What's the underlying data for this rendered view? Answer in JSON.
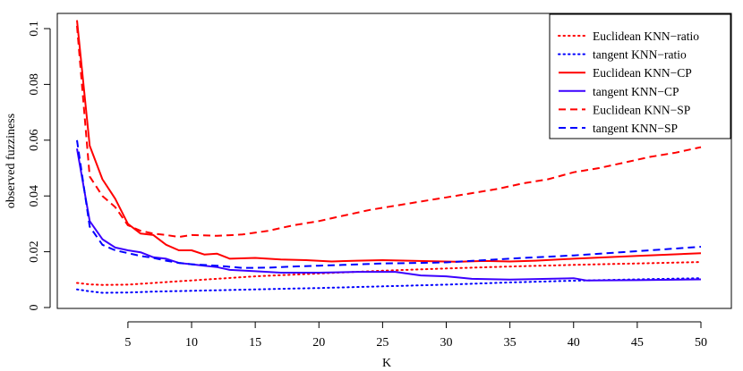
{
  "chart_data": {
    "type": "line",
    "xlabel": "K",
    "ylabel": "observed fuzziness",
    "xlim": [
      1,
      50
    ],
    "ylim": [
      0,
      0.1
    ],
    "x_ticks": [
      {
        "value": 5,
        "label": "5"
      },
      {
        "value": 10,
        "label": "10"
      },
      {
        "value": 15,
        "label": "15"
      },
      {
        "value": 20,
        "label": "20"
      },
      {
        "value": 25,
        "label": "25"
      },
      {
        "value": 30,
        "label": "30"
      },
      {
        "value": 35,
        "label": "35"
      },
      {
        "value": 40,
        "label": "40"
      },
      {
        "value": 45,
        "label": "45"
      },
      {
        "value": 50,
        "label": "50"
      }
    ],
    "y_ticks": [
      {
        "value": 0,
        "label": "0"
      },
      {
        "value": 0.02,
        "label": "0.02"
      },
      {
        "value": 0.04,
        "label": "0.04"
      },
      {
        "value": 0.06,
        "label": "0.06"
      },
      {
        "value": 0.08,
        "label": "0.08"
      },
      {
        "value": 0.1,
        "label": "0.1"
      }
    ],
    "legend_position": "top-right",
    "series": [
      {
        "name": "Euclidean KNN−ratio",
        "color": "#ff0000",
        "linestyle": "dotted",
        "points": [
          [
            1,
            0.0088
          ],
          [
            2,
            0.0083
          ],
          [
            3,
            0.0081
          ],
          [
            5,
            0.0082
          ],
          [
            7,
            0.0088
          ],
          [
            10,
            0.0097
          ],
          [
            15,
            0.0112
          ],
          [
            20,
            0.0122
          ],
          [
            25,
            0.0132
          ],
          [
            30,
            0.014
          ],
          [
            35,
            0.0147
          ],
          [
            40,
            0.0153
          ],
          [
            45,
            0.0158
          ],
          [
            50,
            0.0163
          ]
        ]
      },
      {
        "name": "tangent KNN−ratio",
        "color": "#0000ff",
        "linestyle": "dotted",
        "points": [
          [
            1,
            0.0065
          ],
          [
            2,
            0.0058
          ],
          [
            3,
            0.0053
          ],
          [
            5,
            0.0054
          ],
          [
            7,
            0.0057
          ],
          [
            10,
            0.006
          ],
          [
            15,
            0.0065
          ],
          [
            20,
            0.007
          ],
          [
            25,
            0.0076
          ],
          [
            30,
            0.0082
          ],
          [
            35,
            0.009
          ],
          [
            40,
            0.0096
          ],
          [
            45,
            0.0101
          ],
          [
            50,
            0.0105
          ]
        ]
      },
      {
        "name": "Euclidean KNN−CP",
        "color": "#ff0000",
        "linestyle": "solid",
        "points": [
          [
            1,
            0.103
          ],
          [
            2,
            0.058
          ],
          [
            3,
            0.046
          ],
          [
            4,
            0.039
          ],
          [
            5,
            0.03
          ],
          [
            6,
            0.0265
          ],
          [
            7,
            0.026
          ],
          [
            8,
            0.0225
          ],
          [
            9,
            0.0205
          ],
          [
            10,
            0.0205
          ],
          [
            11,
            0.019
          ],
          [
            12,
            0.0193
          ],
          [
            13,
            0.0175
          ],
          [
            15,
            0.0178
          ],
          [
            17,
            0.0172
          ],
          [
            19,
            0.017
          ],
          [
            21,
            0.0165
          ],
          [
            23,
            0.0168
          ],
          [
            25,
            0.017
          ],
          [
            27,
            0.0168
          ],
          [
            29,
            0.0166
          ],
          [
            31,
            0.0164
          ],
          [
            33,
            0.0167
          ],
          [
            35,
            0.0165
          ],
          [
            37,
            0.0168
          ],
          [
            40,
            0.0175
          ],
          [
            45,
            0.0185
          ],
          [
            50,
            0.0195
          ]
        ]
      },
      {
        "name": "tangent KNN−CP",
        "color": "#3b00ff",
        "linestyle": "solid",
        "points": [
          [
            1,
            0.057
          ],
          [
            2,
            0.031
          ],
          [
            3,
            0.0245
          ],
          [
            4,
            0.0215
          ],
          [
            5,
            0.0205
          ],
          [
            6,
            0.0198
          ],
          [
            7,
            0.018
          ],
          [
            8,
            0.0175
          ],
          [
            9,
            0.016
          ],
          [
            10,
            0.0155
          ],
          [
            11,
            0.015
          ],
          [
            12,
            0.0145
          ],
          [
            13,
            0.0135
          ],
          [
            15,
            0.013
          ],
          [
            17,
            0.0125
          ],
          [
            20,
            0.0125
          ],
          [
            23,
            0.0128
          ],
          [
            26,
            0.0128
          ],
          [
            28,
            0.0115
          ],
          [
            30,
            0.0112
          ],
          [
            32,
            0.0103
          ],
          [
            35,
            0.01
          ],
          [
            38,
            0.0103
          ],
          [
            40,
            0.0105
          ],
          [
            41,
            0.0097
          ],
          [
            45,
            0.0098
          ],
          [
            50,
            0.0101
          ]
        ]
      },
      {
        "name": "Euclidean KNN−SP",
        "color": "#ff0000",
        "linestyle": "dashed",
        "points": [
          [
            1,
            0.101
          ],
          [
            2,
            0.047
          ],
          [
            3,
            0.04
          ],
          [
            4,
            0.036
          ],
          [
            5,
            0.0295
          ],
          [
            6,
            0.0275
          ],
          [
            7,
            0.0265
          ],
          [
            8,
            0.026
          ],
          [
            9,
            0.0253
          ],
          [
            10,
            0.026
          ],
          [
            12,
            0.0257
          ],
          [
            14,
            0.0262
          ],
          [
            16,
            0.0275
          ],
          [
            18,
            0.0295
          ],
          [
            20,
            0.031
          ],
          [
            22,
            0.033
          ],
          [
            24,
            0.035
          ],
          [
            26,
            0.0365
          ],
          [
            28,
            0.038
          ],
          [
            30,
            0.0395
          ],
          [
            32,
            0.041
          ],
          [
            34,
            0.0425
          ],
          [
            36,
            0.0445
          ],
          [
            38,
            0.046
          ],
          [
            40,
            0.0485
          ],
          [
            42,
            0.05
          ],
          [
            44,
            0.052
          ],
          [
            46,
            0.054
          ],
          [
            48,
            0.0555
          ],
          [
            50,
            0.0575
          ]
        ]
      },
      {
        "name": "tangent KNN−SP",
        "color": "#0000ff",
        "linestyle": "dashed",
        "points": [
          [
            1,
            0.06
          ],
          [
            2,
            0.029
          ],
          [
            3,
            0.0225
          ],
          [
            4,
            0.0205
          ],
          [
            5,
            0.0195
          ],
          [
            6,
            0.0185
          ],
          [
            7,
            0.0178
          ],
          [
            8,
            0.0168
          ],
          [
            9,
            0.016
          ],
          [
            10,
            0.0155
          ],
          [
            12,
            0.015
          ],
          [
            14,
            0.0142
          ],
          [
            16,
            0.0143
          ],
          [
            18,
            0.0147
          ],
          [
            20,
            0.015
          ],
          [
            22,
            0.0153
          ],
          [
            25,
            0.0158
          ],
          [
            28,
            0.016
          ],
          [
            30,
            0.0162
          ],
          [
            33,
            0.017
          ],
          [
            36,
            0.0178
          ],
          [
            40,
            0.0187
          ],
          [
            45,
            0.0202
          ],
          [
            50,
            0.0218
          ]
        ]
      }
    ]
  }
}
